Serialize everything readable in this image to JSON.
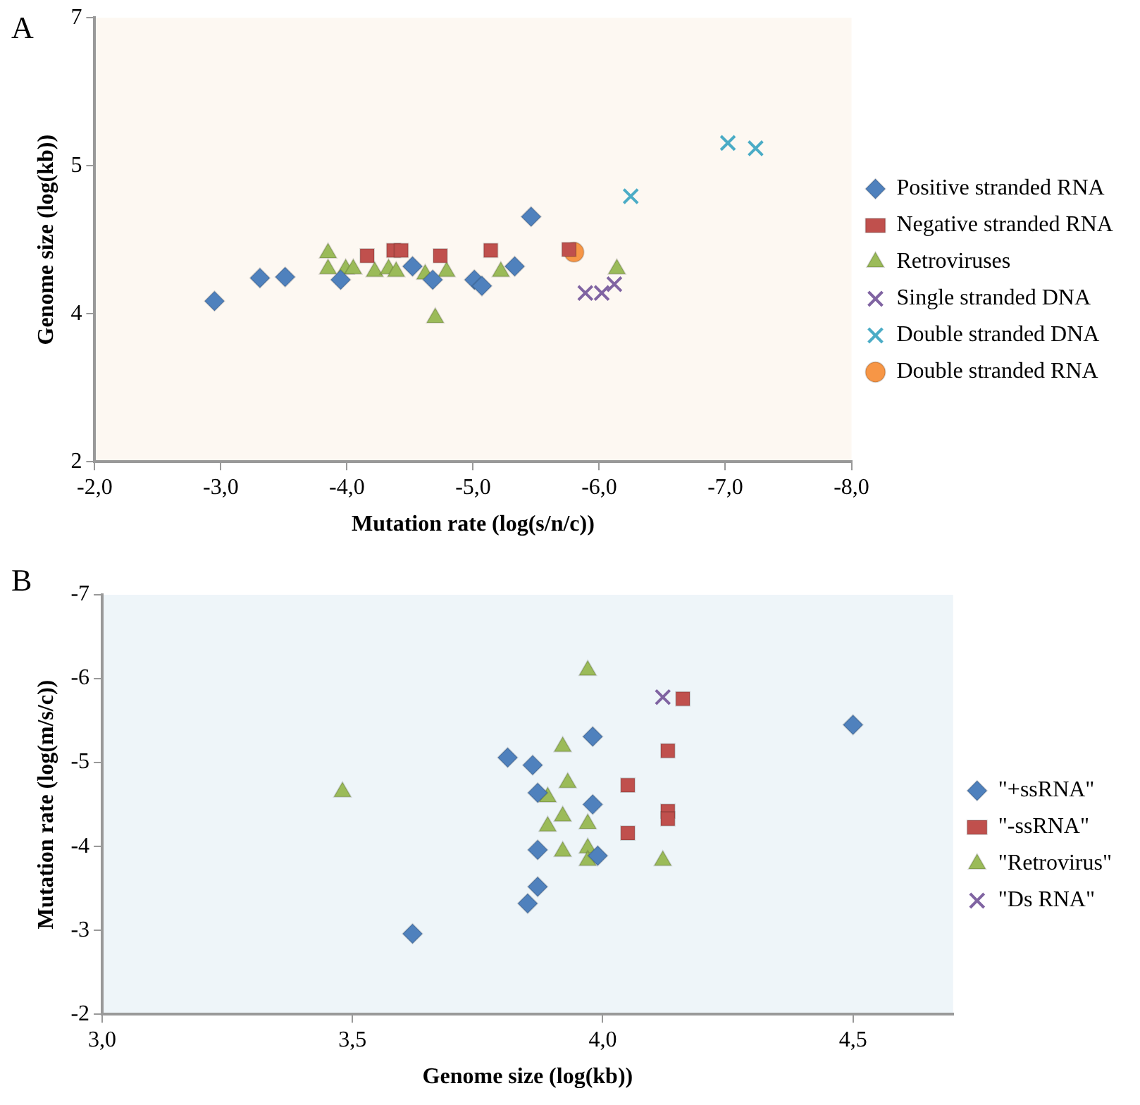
{
  "chart_data": [
    {
      "type": "scatter",
      "annotations": [
        "A"
      ],
      "xlabel": "Mutation rate (log(s/n/c))",
      "ylabel": "Genome size (log(kb))",
      "xlim": [
        -2,
        -8
      ],
      "xticks": [
        {
          "value": -2,
          "label": "-2,0"
        },
        {
          "value": -3,
          "label": "-3,0"
        },
        {
          "value": -4,
          "label": "-4,0"
        },
        {
          "value": -5,
          "label": "-5,0"
        },
        {
          "value": -6,
          "label": "-6,0"
        },
        {
          "value": -7,
          "label": "-7,0"
        },
        {
          "value": -8,
          "label": "-8,0"
        }
      ],
      "ylim": [
        2,
        7
      ],
      "yticks": [
        2,
        {
          "value": 3.667,
          "label": "4"
        },
        {
          "value": 5.333,
          "label": "5"
        },
        7
      ],
      "legend": "right",
      "grid": false,
      "series": [
        {
          "name": "Positive stranded RNA",
          "color": "#4f81bd",
          "marker": "diamond",
          "x": [
            -2.95,
            -3.31,
            -3.51,
            -3.95,
            -4.52,
            -4.68,
            -5.01,
            -5.07,
            -5.33,
            -5.46
          ],
          "values": [
            3.81,
            4.07,
            4.08,
            4.05,
            4.2,
            4.05,
            4.05,
            3.98,
            4.2,
            4.76
          ]
        },
        {
          "name": "Negative stranded RNA",
          "color": "#c0504d",
          "marker": "square",
          "x": [
            -4.16,
            -4.37,
            -4.43,
            -4.74,
            -5.14,
            -5.76
          ],
          "values": [
            4.32,
            4.38,
            4.38,
            4.32,
            4.38,
            4.39
          ]
        },
        {
          "name": "Retroviruses",
          "color": "#9bbb59",
          "marker": "triangle",
          "x": [
            -3.85,
            -3.85,
            -3.99,
            -4.05,
            -4.22,
            -4.33,
            -4.39,
            -4.62,
            -4.79,
            -4.7,
            -5.22,
            -6.14
          ],
          "values": [
            4.35,
            4.17,
            4.17,
            4.17,
            4.14,
            4.17,
            4.14,
            4.11,
            4.14,
            3.62,
            4.14,
            4.17
          ]
        },
        {
          "name": "Single stranded DNA",
          "color": "#8064a2",
          "marker": "cross",
          "x": [
            -5.89,
            -6.02,
            -6.12
          ],
          "values": [
            3.9,
            3.9,
            4.0
          ]
        },
        {
          "name": "Double stranded DNA",
          "color": "#4bacc6",
          "marker": "cross",
          "x": [
            -6.25,
            -7.02,
            -7.24
          ],
          "values": [
            4.99,
            5.59,
            5.53
          ]
        },
        {
          "name": "Double stranded RNA",
          "color": "#f79646",
          "marker": "circle",
          "x": [
            -5.8
          ],
          "values": [
            4.36
          ]
        }
      ]
    },
    {
      "type": "scatter",
      "annotations": [
        "B"
      ],
      "xlabel": "Genome size (log(kb))",
      "ylabel": "Mutation rate (log(m/s/c))",
      "xlim": [
        3.0,
        4.7
      ],
      "xticks": [
        {
          "value": 3.0,
          "label": "3,0"
        },
        {
          "value": 3.5,
          "label": "3,5"
        },
        {
          "value": 4.0,
          "label": "4,0"
        },
        {
          "value": 4.5,
          "label": "4,5"
        }
      ],
      "ylim": [
        -2,
        -7
      ],
      "yticks": [
        -2,
        -3,
        -4,
        -5,
        -6,
        -7
      ],
      "legend": "right",
      "grid": false,
      "series": [
        {
          "name": "\"+ssRNA\"",
          "color": "#4f81bd",
          "marker": "diamond",
          "x": [
            3.62,
            3.85,
            3.87,
            3.87,
            3.99,
            3.87,
            3.98,
            3.81,
            3.86,
            3.98,
            4.5
          ],
          "values": [
            -2.96,
            -3.32,
            -3.52,
            -3.96,
            -3.89,
            -4.64,
            -4.5,
            -5.06,
            -4.97,
            -5.31,
            -5.45
          ]
        },
        {
          "name": "\"-ssRNA\"",
          "color": "#c0504d",
          "marker": "square",
          "x": [
            4.05,
            4.05,
            4.13,
            4.13,
            4.13,
            4.16
          ],
          "values": [
            -4.16,
            -4.73,
            -5.14,
            -4.42,
            -4.33,
            -5.76
          ]
        },
        {
          "name": "\"Retrovirus\"",
          "color": "#9bbb59",
          "marker": "triangle",
          "x": [
            3.48,
            3.97,
            3.92,
            3.93,
            3.89,
            3.92,
            3.97,
            3.89,
            3.92,
            3.97,
            3.97,
            4.12
          ],
          "values": [
            -4.65,
            -6.1,
            -5.19,
            -4.76,
            -4.59,
            -4.36,
            -4.27,
            -4.24,
            -3.94,
            -3.98,
            -3.83,
            -3.83
          ]
        },
        {
          "name": "\"Ds RNA\"",
          "color": "#8064a2",
          "marker": "cross",
          "x": [
            4.12
          ],
          "values": [
            -5.78
          ]
        }
      ]
    }
  ]
}
